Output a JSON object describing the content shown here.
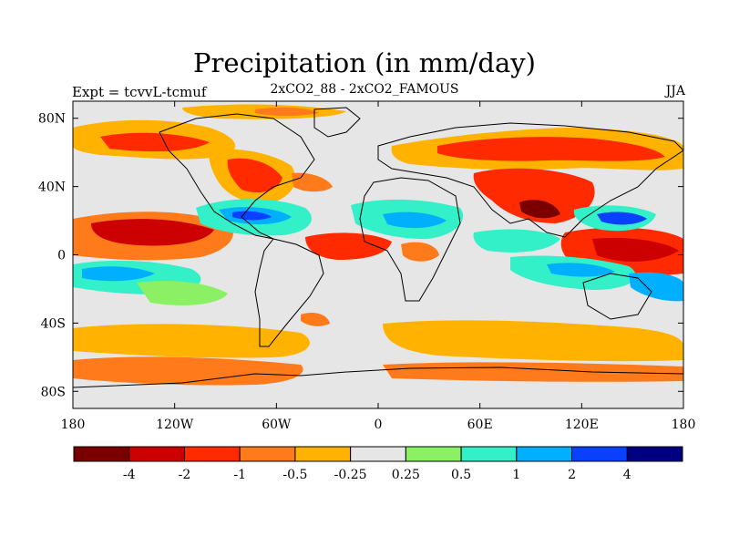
{
  "header": {
    "title": "Precipitation (in mm/day)",
    "experiment": "Expt = tcvvL-tcmuf",
    "difference": "2xCO2_88 - 2xCO2_FAMOUS",
    "season": "JJA"
  },
  "axes": {
    "lat_ticks": [
      {
        "value": 80,
        "label": "80N"
      },
      {
        "value": 40,
        "label": "40N"
      },
      {
        "value": 0,
        "label": "0"
      },
      {
        "value": -40,
        "label": "40S"
      },
      {
        "value": -80,
        "label": "80S"
      }
    ],
    "lon_ticks": [
      {
        "value": -180,
        "label": "180"
      },
      {
        "value": -120,
        "label": "120W"
      },
      {
        "value": -60,
        "label": "60W"
      },
      {
        "value": 0,
        "label": "0"
      },
      {
        "value": 60,
        "label": "60E"
      },
      {
        "value": 120,
        "label": "120E"
      },
      {
        "value": 180,
        "label": "180"
      }
    ],
    "lat_range": [
      -90,
      90
    ],
    "lon_range": [
      -180,
      180
    ]
  },
  "colorbar": {
    "colors": [
      "#7a0000",
      "#cc0000",
      "#ff2a00",
      "#ff7a1a",
      "#ffb300",
      "#e6e6e6",
      "#8cf064",
      "#33f0c8",
      "#00b0ff",
      "#0a40ff",
      "#000080"
    ],
    "labels": [
      "-4",
      "-2",
      "-1",
      "-0.5",
      "-0.25",
      "0.25",
      "0.5",
      "1",
      "2",
      "4"
    ]
  }
}
